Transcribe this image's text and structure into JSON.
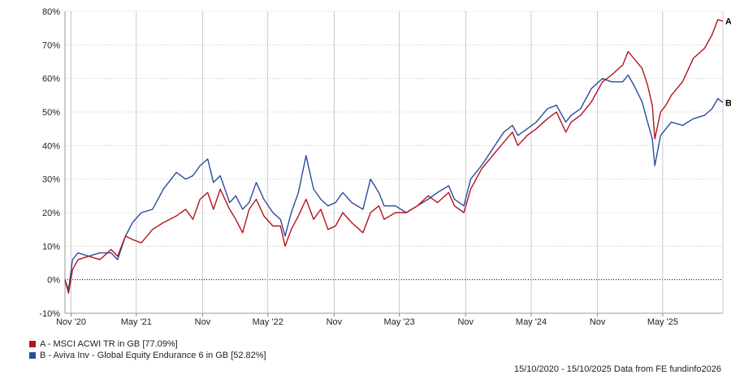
{
  "chart_data": {
    "type": "line",
    "xlim": [
      "2020-10-15",
      "2025-10-15"
    ],
    "ylim": [
      -10,
      80
    ],
    "y_ticks": [
      -10,
      0,
      10,
      20,
      30,
      40,
      50,
      60,
      70,
      80
    ],
    "y_tick_labels": [
      "-10%",
      "0%",
      "10%",
      "20%",
      "30%",
      "40%",
      "50%",
      "60%",
      "70%",
      "80%"
    ],
    "x_ticks": [
      {
        "date": "2020-11-01",
        "label": "Nov '20"
      },
      {
        "date": "2021-05-01",
        "label": "May '21"
      },
      {
        "date": "2021-11-01",
        "label": "Nov"
      },
      {
        "date": "2022-05-01",
        "label": "May '22"
      },
      {
        "date": "2022-11-01",
        "label": "Nov"
      },
      {
        "date": "2023-05-01",
        "label": "May '23"
      },
      {
        "date": "2023-11-01",
        "label": "Nov"
      },
      {
        "date": "2024-05-01",
        "label": "May '24"
      },
      {
        "date": "2024-11-01",
        "label": "Nov"
      },
      {
        "date": "2025-05-01",
        "label": "May '25"
      }
    ],
    "grid": true,
    "zero_line": "dotted",
    "series": [
      {
        "key": "A",
        "name": "A - MSCI ACWI TR in GB [77.09%]",
        "color": "#b5121b",
        "points": [
          [
            "2020-10-15",
            0
          ],
          [
            "2020-10-25",
            -4
          ],
          [
            "2020-11-05",
            3
          ],
          [
            "2020-11-20",
            6
          ],
          [
            "2020-12-20",
            7
          ],
          [
            "2021-01-20",
            6
          ],
          [
            "2021-02-20",
            9
          ],
          [
            "2021-03-10",
            7
          ],
          [
            "2021-04-01",
            13
          ],
          [
            "2021-04-20",
            12
          ],
          [
            "2021-05-15",
            11
          ],
          [
            "2021-06-15",
            15
          ],
          [
            "2021-07-15",
            17
          ],
          [
            "2021-08-20",
            19
          ],
          [
            "2021-09-15",
            21
          ],
          [
            "2021-10-05",
            18
          ],
          [
            "2021-10-25",
            24
          ],
          [
            "2021-11-15",
            26
          ],
          [
            "2021-12-01",
            21
          ],
          [
            "2021-12-20",
            27
          ],
          [
            "2022-01-15",
            21
          ],
          [
            "2022-02-01",
            18
          ],
          [
            "2022-02-20",
            14
          ],
          [
            "2022-03-10",
            21
          ],
          [
            "2022-03-30",
            24
          ],
          [
            "2022-04-20",
            19
          ],
          [
            "2022-05-15",
            16
          ],
          [
            "2022-06-05",
            16
          ],
          [
            "2022-06-18",
            10
          ],
          [
            "2022-07-05",
            15
          ],
          [
            "2022-07-25",
            19
          ],
          [
            "2022-08-15",
            24
          ],
          [
            "2022-09-05",
            18
          ],
          [
            "2022-09-25",
            21
          ],
          [
            "2022-10-15",
            15
          ],
          [
            "2022-11-05",
            16
          ],
          [
            "2022-11-25",
            20
          ],
          [
            "2022-12-20",
            17
          ],
          [
            "2023-01-20",
            14
          ],
          [
            "2023-02-10",
            20
          ],
          [
            "2023-03-05",
            22
          ],
          [
            "2023-03-20",
            18
          ],
          [
            "2023-04-20",
            20
          ],
          [
            "2023-05-20",
            20
          ],
          [
            "2023-06-20",
            22
          ],
          [
            "2023-07-20",
            25
          ],
          [
            "2023-08-15",
            23
          ],
          [
            "2023-09-15",
            26
          ],
          [
            "2023-10-01",
            22
          ],
          [
            "2023-10-27",
            20
          ],
          [
            "2023-11-15",
            27
          ],
          [
            "2023-12-15",
            33
          ],
          [
            "2024-01-15",
            37
          ],
          [
            "2024-02-15",
            41
          ],
          [
            "2024-03-10",
            44
          ],
          [
            "2024-03-25",
            40
          ],
          [
            "2024-04-20",
            43
          ],
          [
            "2024-05-15",
            45
          ],
          [
            "2024-06-15",
            48
          ],
          [
            "2024-07-10",
            50
          ],
          [
            "2024-08-05",
            44
          ],
          [
            "2024-08-20",
            47
          ],
          [
            "2024-09-15",
            49
          ],
          [
            "2024-10-15",
            53
          ],
          [
            "2024-11-15",
            59
          ],
          [
            "2024-12-10",
            61
          ],
          [
            "2025-01-10",
            64
          ],
          [
            "2025-01-25",
            68
          ],
          [
            "2025-02-10",
            66
          ],
          [
            "2025-03-05",
            63
          ],
          [
            "2025-03-20",
            58
          ],
          [
            "2025-04-02",
            52
          ],
          [
            "2025-04-09",
            42
          ],
          [
            "2025-04-25",
            50
          ],
          [
            "2025-05-10",
            52
          ],
          [
            "2025-05-25",
            55
          ],
          [
            "2025-06-25",
            59
          ],
          [
            "2025-07-25",
            66
          ],
          [
            "2025-08-25",
            69
          ],
          [
            "2025-09-15",
            73
          ],
          [
            "2025-10-01",
            77.5
          ],
          [
            "2025-10-15",
            77.09
          ]
        ]
      },
      {
        "key": "B",
        "name": "B - Aviva Inv - Global Equity Endurance 6 in GB [52.82%]",
        "color": "#2a4c9f",
        "points": [
          [
            "2020-10-15",
            0
          ],
          [
            "2020-10-25",
            -3
          ],
          [
            "2020-11-05",
            6
          ],
          [
            "2020-11-20",
            8
          ],
          [
            "2020-12-20",
            7
          ],
          [
            "2021-01-20",
            8
          ],
          [
            "2021-02-20",
            8
          ],
          [
            "2021-03-10",
            6
          ],
          [
            "2021-04-01",
            13
          ],
          [
            "2021-04-20",
            17
          ],
          [
            "2021-05-15",
            20
          ],
          [
            "2021-06-15",
            21
          ],
          [
            "2021-07-15",
            27
          ],
          [
            "2021-08-20",
            32
          ],
          [
            "2021-09-15",
            30
          ],
          [
            "2021-10-05",
            31
          ],
          [
            "2021-10-25",
            34
          ],
          [
            "2021-11-15",
            36
          ],
          [
            "2021-12-01",
            29
          ],
          [
            "2021-12-20",
            31
          ],
          [
            "2022-01-15",
            23
          ],
          [
            "2022-02-01",
            25
          ],
          [
            "2022-02-20",
            21
          ],
          [
            "2022-03-10",
            23
          ],
          [
            "2022-03-30",
            29
          ],
          [
            "2022-04-20",
            24
          ],
          [
            "2022-05-15",
            20
          ],
          [
            "2022-06-05",
            18
          ],
          [
            "2022-06-18",
            13
          ],
          [
            "2022-07-05",
            20
          ],
          [
            "2022-07-25",
            26
          ],
          [
            "2022-08-15",
            37
          ],
          [
            "2022-09-05",
            27
          ],
          [
            "2022-09-25",
            24
          ],
          [
            "2022-10-15",
            22
          ],
          [
            "2022-11-05",
            23
          ],
          [
            "2022-11-25",
            26
          ],
          [
            "2022-12-20",
            23
          ],
          [
            "2023-01-20",
            21
          ],
          [
            "2023-02-10",
            30
          ],
          [
            "2023-03-05",
            26
          ],
          [
            "2023-03-20",
            22
          ],
          [
            "2023-04-20",
            22
          ],
          [
            "2023-05-20",
            20
          ],
          [
            "2023-06-20",
            22
          ],
          [
            "2023-07-20",
            24
          ],
          [
            "2023-08-15",
            26
          ],
          [
            "2023-09-15",
            28
          ],
          [
            "2023-10-01",
            24
          ],
          [
            "2023-10-27",
            22
          ],
          [
            "2023-11-15",
            30
          ],
          [
            "2023-12-15",
            34
          ],
          [
            "2024-01-15",
            39
          ],
          [
            "2024-02-15",
            44
          ],
          [
            "2024-03-10",
            46
          ],
          [
            "2024-03-25",
            43
          ],
          [
            "2024-04-20",
            45
          ],
          [
            "2024-05-15",
            47
          ],
          [
            "2024-06-15",
            51
          ],
          [
            "2024-07-10",
            52
          ],
          [
            "2024-08-05",
            47
          ],
          [
            "2024-08-20",
            49
          ],
          [
            "2024-09-15",
            51
          ],
          [
            "2024-10-15",
            57
          ],
          [
            "2024-11-15",
            60
          ],
          [
            "2024-12-10",
            59
          ],
          [
            "2025-01-10",
            59
          ],
          [
            "2025-01-25",
            61
          ],
          [
            "2025-02-10",
            58
          ],
          [
            "2025-03-05",
            53
          ],
          [
            "2025-03-20",
            47
          ],
          [
            "2025-04-02",
            42
          ],
          [
            "2025-04-09",
            34
          ],
          [
            "2025-04-25",
            43
          ],
          [
            "2025-05-10",
            45
          ],
          [
            "2025-05-25",
            47
          ],
          [
            "2025-06-25",
            46
          ],
          [
            "2025-07-25",
            48
          ],
          [
            "2025-08-25",
            49
          ],
          [
            "2025-09-15",
            51
          ],
          [
            "2025-10-01",
            54
          ],
          [
            "2025-10-15",
            52.82
          ]
        ]
      }
    ]
  },
  "footer": {
    "date_range": "15/10/2020 - 15/10/2025",
    "source": "Data from FE fundinfo2026"
  }
}
